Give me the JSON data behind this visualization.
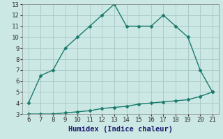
{
  "title": "",
  "xlabel": "Humidex (Indice chaleur)",
  "ylabel": "",
  "x_upper": [
    6,
    7,
    8,
    9,
    10,
    11,
    12,
    13,
    14,
    15,
    16,
    17,
    18,
    19,
    20,
    21
  ],
  "y_upper": [
    4,
    6.5,
    7,
    9,
    10,
    11,
    12,
    13,
    11,
    11,
    11,
    12,
    11,
    10,
    7,
    5
  ],
  "x_lower": [
    6,
    7,
    8,
    9,
    10,
    11,
    12,
    13,
    14,
    15,
    16,
    17,
    18,
    19,
    20,
    21
  ],
  "y_lower": [
    3,
    3,
    3,
    3.1,
    3.2,
    3.3,
    3.5,
    3.6,
    3.7,
    3.9,
    4.0,
    4.1,
    4.2,
    4.3,
    4.6,
    5.0
  ],
  "line_color": "#1a7a6e",
  "bg_color": "#cce8e4",
  "grid_color": "#aaccca",
  "xlim": [
    5.5,
    21.5
  ],
  "ylim": [
    3,
    13
  ],
  "xticks": [
    6,
    7,
    8,
    9,
    10,
    11,
    12,
    13,
    14,
    15,
    16,
    17,
    18,
    19,
    20,
    21
  ],
  "yticks": [
    3,
    4,
    5,
    6,
    7,
    8,
    9,
    10,
    11,
    12,
    13
  ],
  "marker": "D",
  "markersize": 2.5,
  "linewidth": 1.0,
  "tick_fontsize": 6.5,
  "label_fontsize": 7.5,
  "xlabel_color": "#1a1a6e",
  "xlabel_bold": true
}
